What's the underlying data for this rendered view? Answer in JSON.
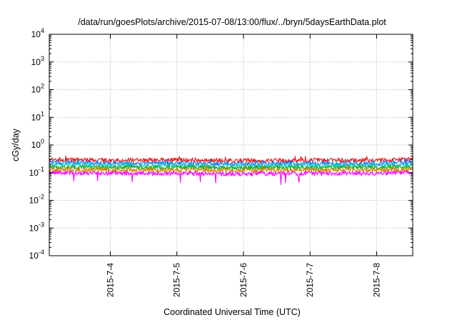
{
  "chart_data": {
    "type": "line",
    "title": "/data/run/goesPlots/archive/2015-07-08/13:00/flux/../bryn/5daysEarthData.plot",
    "xlabel": "Coordinated Universal Time (UTC)",
    "ylabel": "cGy/day",
    "yscale": "log",
    "ylim": [
      0.0001,
      10000
    ],
    "xlim": [
      "2015-07-03T02:00",
      "2015-07-08T13:00"
    ],
    "grid": true,
    "legend": "none",
    "y_ticks": [
      {
        "base": "10",
        "exp": "-4",
        "value": 0.0001
      },
      {
        "base": "10",
        "exp": "-3",
        "value": 0.001
      },
      {
        "base": "10",
        "exp": "-2",
        "value": 0.01
      },
      {
        "base": "10",
        "exp": "-1",
        "value": 0.1
      },
      {
        "base": "10",
        "exp": "0",
        "value": 1
      },
      {
        "base": "10",
        "exp": "1",
        "value": 10
      },
      {
        "base": "10",
        "exp": "2",
        "value": 100
      },
      {
        "base": "10",
        "exp": "3",
        "value": 1000
      },
      {
        "base": "10",
        "exp": "4",
        "value": 10000
      }
    ],
    "x_ticks": [
      {
        "label": "2015-7-4",
        "value": "2015-07-04T00:00"
      },
      {
        "label": "2015-7-5",
        "value": "2015-07-05T00:00"
      },
      {
        "label": "2015-7-6",
        "value": "2015-07-06T00:00"
      },
      {
        "label": "2015-7-7",
        "value": "2015-07-07T00:00"
      },
      {
        "label": "2015-7-8",
        "value": "2015-07-08T00:00"
      }
    ],
    "x": [
      "2015-07-03T02:00",
      "2015-07-04T00:00",
      "2015-07-05T00:00",
      "2015-07-06T00:00",
      "2015-07-07T00:00",
      "2015-07-08T00:00",
      "2015-07-08T13:00"
    ],
    "series": [
      {
        "color": "#e41a1c",
        "values": [
          0.3,
          0.28,
          0.29,
          0.27,
          0.28,
          0.28,
          0.3
        ]
      },
      {
        "color": "#1f78e8",
        "values": [
          0.24,
          0.22,
          0.22,
          0.21,
          0.22,
          0.22,
          0.24
        ]
      },
      {
        "color": "#00c8c8",
        "values": [
          0.19,
          0.18,
          0.18,
          0.17,
          0.18,
          0.18,
          0.19
        ]
      },
      {
        "color": "#22aa22",
        "values": [
          0.16,
          0.155,
          0.155,
          0.15,
          0.155,
          0.155,
          0.16
        ]
      },
      {
        "color": "#cc8800",
        "values": [
          0.13,
          0.125,
          0.125,
          0.12,
          0.125,
          0.125,
          0.13
        ]
      },
      {
        "color": "#ff00ff",
        "values": [
          0.1,
          0.095,
          0.095,
          0.09,
          0.095,
          0.095,
          0.1
        ]
      }
    ]
  }
}
